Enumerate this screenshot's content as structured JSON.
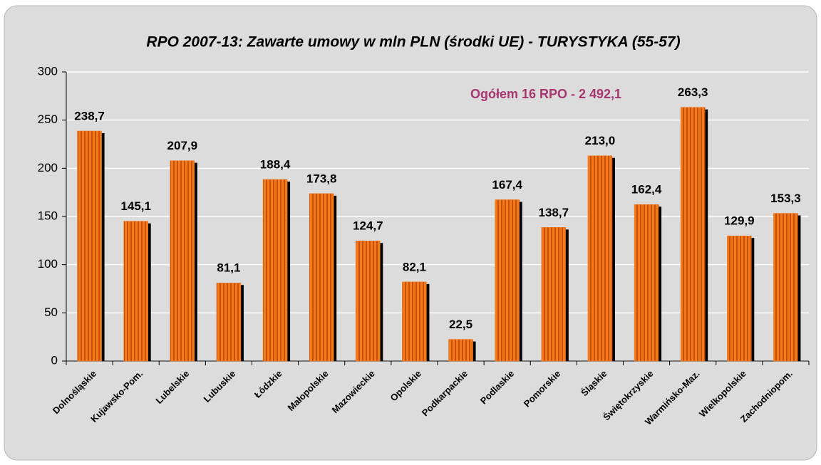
{
  "chart_data": {
    "type": "bar",
    "title": "RPO 2007-13: Zawarte umowy w mln PLN (środki UE) - TURYSTYKA (55-57)",
    "annotation": "Ogółem 16 RPO - 2 492,1",
    "categories": [
      "Dolnośląskie",
      "Kujawsko-Pom.",
      "Lubelskie",
      "Lubuskie",
      "Łódzkie",
      "Małopolskie",
      "Mazowieckie",
      "Opolskie",
      "Podkarpackie",
      "Podlaskie",
      "Pomorskie",
      "Śląskie",
      "Świętokrzyskie",
      "Warmińsko-Maz.",
      "Wielkopolskie",
      "Zachodniopom."
    ],
    "values": [
      238.7,
      145.1,
      207.9,
      81.1,
      188.4,
      173.8,
      124.7,
      82.1,
      22.5,
      167.4,
      138.7,
      213.0,
      162.4,
      263.3,
      129.9,
      153.3
    ],
    "value_labels": [
      "238,7",
      "145,1",
      "207,9",
      "81,1",
      "188,4",
      "173,8",
      "124,7",
      "82,1",
      "22,5",
      "167,4",
      "138,7",
      "213,0",
      "162,4",
      "263,3",
      "129,9",
      "153,3"
    ],
    "color": "#f07818",
    "ylim": [
      0,
      300
    ],
    "yticks": [
      0,
      50,
      100,
      150,
      200,
      250,
      300
    ],
    "grid": true
  }
}
